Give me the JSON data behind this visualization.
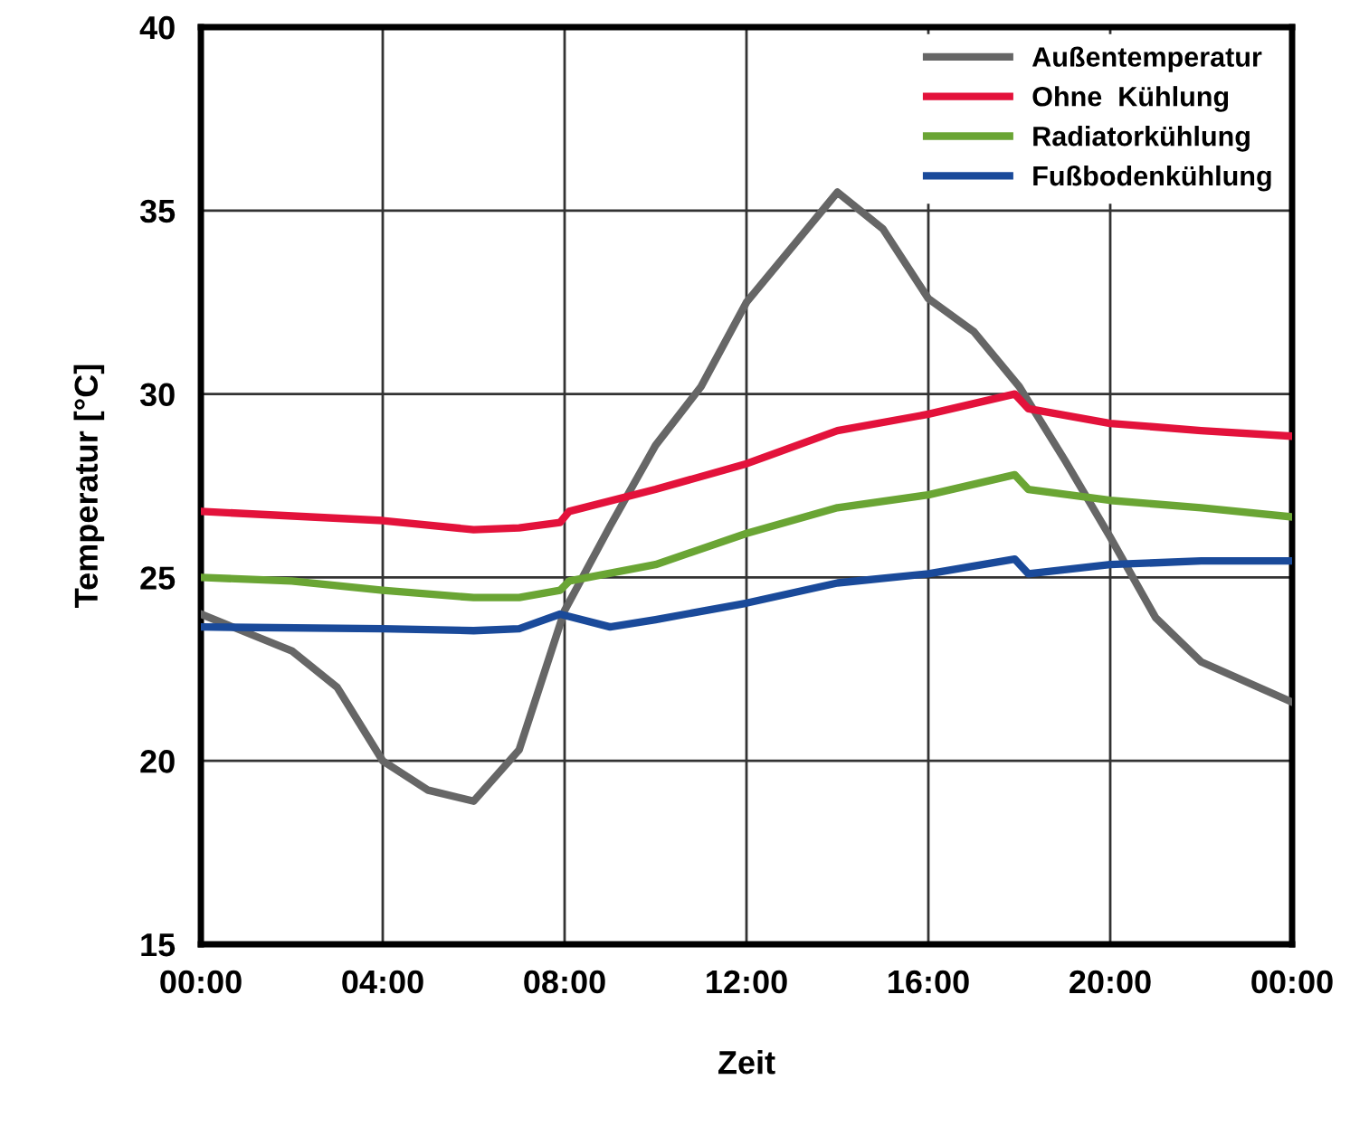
{
  "chart_data": {
    "type": "line",
    "xlabel": "Zeit",
    "ylabel": "Temperatur [°C]",
    "xlim": [
      0,
      24
    ],
    "ylim": [
      15,
      40
    ],
    "xticks": [
      {
        "value": 0,
        "label": "00:00"
      },
      {
        "value": 4,
        "label": "04:00"
      },
      {
        "value": 8,
        "label": "08:00"
      },
      {
        "value": 12,
        "label": "12:00"
      },
      {
        "value": 16,
        "label": "16:00"
      },
      {
        "value": 20,
        "label": "20:00"
      },
      {
        "value": 24,
        "label": "00:00"
      }
    ],
    "yticks": [
      15,
      20,
      25,
      30,
      35,
      40
    ],
    "grid": true,
    "legend": "top right",
    "marker": "none",
    "line_style": "solid",
    "series": [
      {
        "name": "Außentemperatur",
        "color": "#666666",
        "x": [
          0,
          2,
          3,
          4,
          5,
          6,
          7,
          8,
          9,
          10,
          11,
          12,
          14,
          15,
          16,
          17,
          18,
          19,
          20,
          21,
          22,
          24
        ],
        "values": [
          24.0,
          23.0,
          22.0,
          20.0,
          19.2,
          18.9,
          20.3,
          24.1,
          26.4,
          28.6,
          30.2,
          32.5,
          35.5,
          34.5,
          32.6,
          31.7,
          30.2,
          28.2,
          26.1,
          23.9,
          22.7,
          21.6
        ]
      },
      {
        "name": "Ohne  Kühlung",
        "color": "#e3123b",
        "x": [
          0,
          4,
          6,
          7,
          7.9,
          8.1,
          10,
          12,
          14,
          16,
          17.9,
          18.2,
          20,
          22,
          24
        ],
        "values": [
          26.8,
          26.55,
          26.3,
          26.35,
          26.5,
          26.8,
          27.4,
          28.1,
          29.0,
          29.45,
          30.0,
          29.6,
          29.2,
          29.0,
          28.85
        ]
      },
      {
        "name": "Radiatorkühlung",
        "color": "#6aa534",
        "x": [
          0,
          2,
          4,
          6,
          7,
          7.9,
          8.1,
          10,
          12,
          14,
          16,
          17.9,
          18.2,
          20,
          22,
          24
        ],
        "values": [
          25.0,
          24.9,
          24.65,
          24.45,
          24.45,
          24.65,
          24.9,
          25.35,
          26.2,
          26.9,
          27.25,
          27.8,
          27.4,
          27.1,
          26.9,
          26.65
        ]
      },
      {
        "name": "Fußbodenkühlung",
        "color": "#1a4a9a",
        "x": [
          0,
          4,
          6,
          7,
          7.9,
          9,
          10,
          12,
          14,
          16,
          17.9,
          18.2,
          20,
          22,
          24
        ],
        "values": [
          23.65,
          23.6,
          23.55,
          23.6,
          24.0,
          23.65,
          23.85,
          24.3,
          24.85,
          25.1,
          25.5,
          25.1,
          25.35,
          25.45,
          25.45
        ]
      }
    ]
  }
}
